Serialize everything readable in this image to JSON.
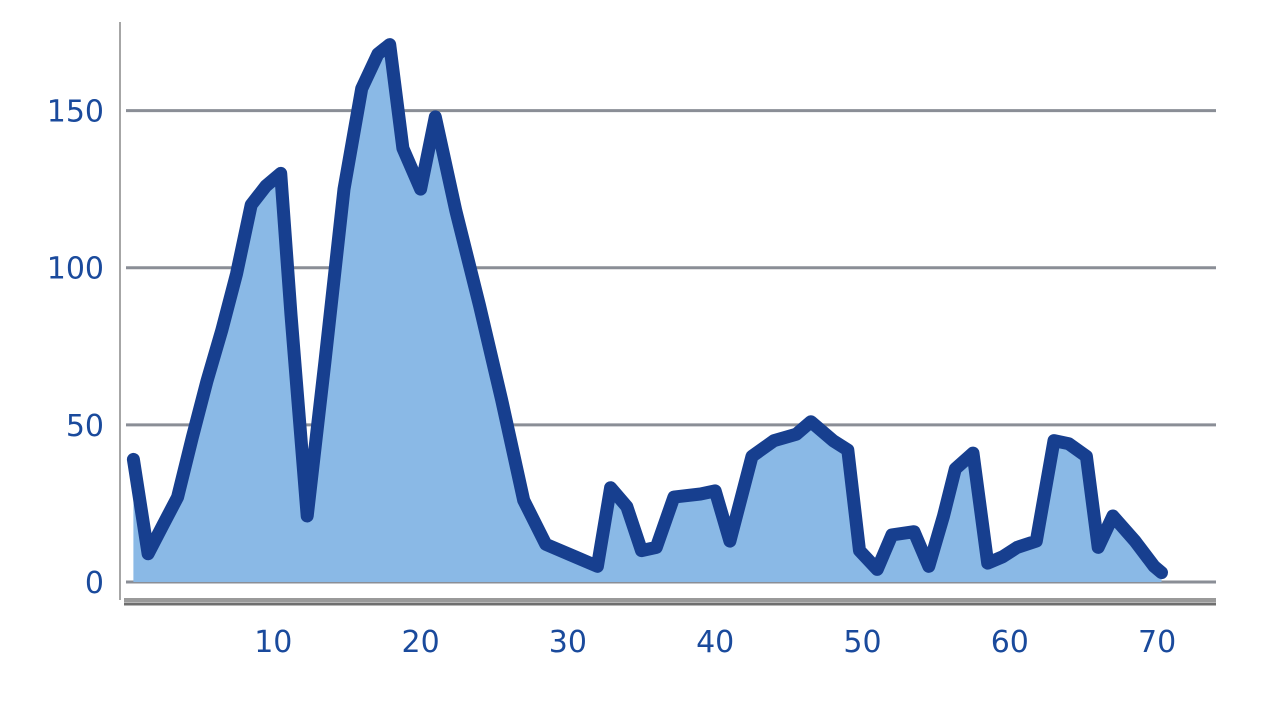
{
  "chart_data": {
    "type": "area",
    "title": "",
    "xlabel": "",
    "ylabel": "",
    "xlim": [
      0,
      74
    ],
    "ylim": [
      0,
      175
    ],
    "x_ticks": [
      10,
      20,
      30,
      40,
      50,
      60,
      70
    ],
    "y_ticks": [
      0,
      50,
      100,
      150
    ],
    "grid": "horizontal",
    "legend": "none",
    "colors": {
      "line": "#173f8f",
      "fill": "#8ab9e6",
      "grid": "#8a8e96",
      "text": "#1a4a9c",
      "axis": "#a6a6a6"
    },
    "series": [
      {
        "x": [
          0.5,
          1.5,
          2.5,
          3.5,
          4.5,
          5.5,
          6.5,
          7.5,
          8.5,
          9.5,
          10.5,
          11.2,
          12.3,
          13.5,
          14.8,
          16.0,
          17.1,
          17.9,
          18.8,
          20.0,
          21.0,
          22.4,
          24.0,
          25.5,
          27.0,
          28.5,
          30.5,
          32.0,
          32.9,
          34.0,
          35.0,
          36.0,
          37.2,
          39.0,
          40.0,
          41.0,
          42.5,
          44.0,
          45.5,
          46.5,
          48.0,
          49.0,
          49.8,
          51.0,
          52.0,
          53.5,
          54.5,
          55.5,
          56.3,
          57.5,
          58.5,
          59.5,
          60.5,
          61.8,
          63.0,
          64.0,
          65.2,
          66.0,
          67.0,
          68.5,
          69.8,
          70.3
        ],
        "values": [
          39,
          9,
          18,
          27,
          46,
          64,
          80,
          98,
          120,
          126,
          130,
          85,
          21,
          70,
          125,
          157,
          168,
          171,
          138,
          125,
          148,
          118,
          88,
          58,
          26,
          12,
          8,
          5,
          30,
          24,
          10,
          11,
          27,
          28,
          29,
          13,
          40,
          45,
          47,
          51,
          45,
          42,
          10,
          4,
          15,
          16,
          5,
          21,
          36,
          41,
          6,
          8,
          11,
          13,
          45,
          44,
          40,
          11,
          21,
          13,
          5,
          3
        ]
      }
    ]
  }
}
